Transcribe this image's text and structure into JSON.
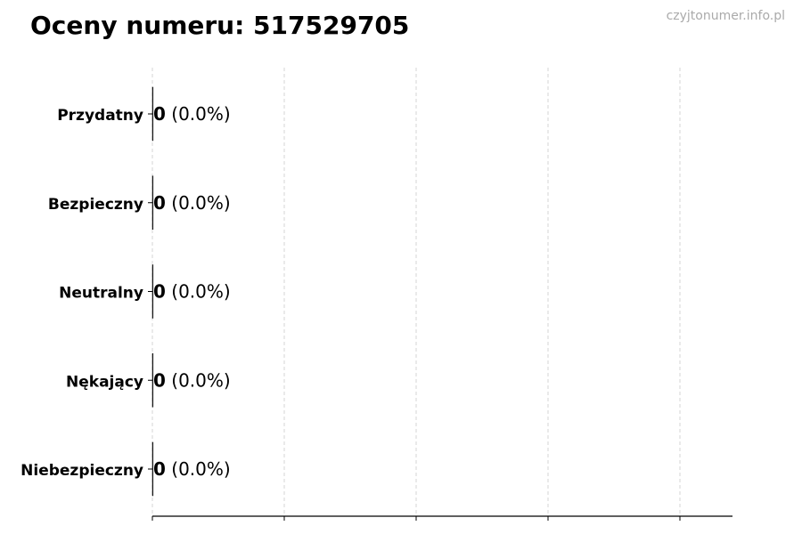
{
  "watermark": "czyjtonumer.info.pl",
  "chart_data": {
    "type": "bar",
    "orientation": "horizontal",
    "title": "Oceny numeru: 517529705",
    "categories": [
      "Przydatny",
      "Bezpieczny",
      "Neutralny",
      "Nękający",
      "Niebezpieczny"
    ],
    "values": [
      0,
      0,
      0,
      0,
      0
    ],
    "data_labels": [
      {
        "count": "0",
        "percent": "(0.0%)"
      },
      {
        "count": "0",
        "percent": "(0.0%)"
      },
      {
        "count": "0",
        "percent": "(0.0%)"
      },
      {
        "count": "0",
        "percent": "(0.0%)"
      },
      {
        "count": "0",
        "percent": "(0.0%)"
      }
    ],
    "xlabel": "",
    "ylabel": "",
    "x_ticks": 5,
    "grid": "vertical dashed",
    "legend": "none"
  }
}
